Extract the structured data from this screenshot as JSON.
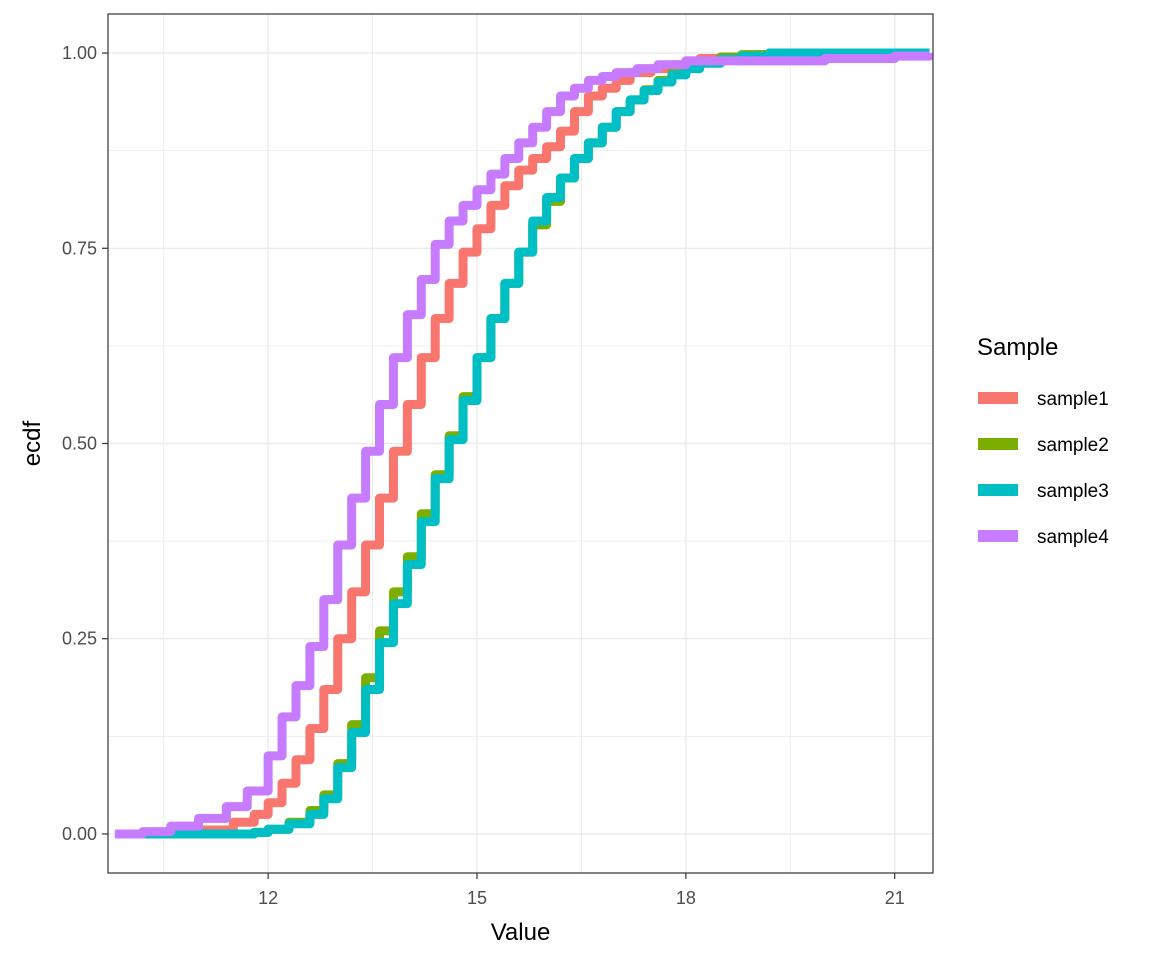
{
  "chart_data": {
    "type": "line",
    "title": "",
    "xlabel": "Value",
    "ylabel": "ecdf",
    "xlim": [
      9.7,
      21.55
    ],
    "ylim": [
      -0.05,
      1.05
    ],
    "x_ticks": [
      12,
      15,
      18,
      21
    ],
    "x_tick_labels": [
      "12",
      "15",
      "18",
      "21"
    ],
    "y_ticks": [
      0,
      0.25,
      0.5,
      0.75,
      1
    ],
    "y_tick_labels": [
      "0.00",
      "0.25",
      "0.50",
      "0.75",
      "1.00"
    ],
    "grid": true,
    "legend": {
      "title": "Sample",
      "position": "right"
    },
    "series": [
      {
        "name": "sample1",
        "color": "#F8766D",
        "x": [
          9.8,
          10.5,
          11.0,
          11.5,
          11.8,
          12.0,
          12.2,
          12.4,
          12.6,
          12.8,
          13.0,
          13.2,
          13.4,
          13.6,
          13.8,
          14.0,
          14.2,
          14.4,
          14.6,
          14.8,
          15.0,
          15.2,
          15.4,
          15.6,
          15.8,
          16.0,
          16.2,
          16.4,
          16.6,
          16.8,
          17.0,
          17.2,
          17.5,
          17.8,
          18.0,
          18.2,
          18.5,
          19.0,
          20.0,
          21.5
        ],
        "y": [
          0.0,
          0.0,
          0.005,
          0.015,
          0.025,
          0.04,
          0.065,
          0.095,
          0.135,
          0.185,
          0.25,
          0.31,
          0.37,
          0.43,
          0.49,
          0.55,
          0.61,
          0.66,
          0.705,
          0.745,
          0.775,
          0.805,
          0.83,
          0.85,
          0.865,
          0.88,
          0.9,
          0.925,
          0.945,
          0.955,
          0.965,
          0.975,
          0.98,
          0.985,
          0.99,
          0.993,
          0.995,
          0.998,
          1.0,
          1.0
        ]
      },
      {
        "name": "sample2",
        "color": "#7CAE00",
        "x": [
          9.8,
          11.0,
          11.8,
          12.0,
          12.3,
          12.6,
          12.8,
          13.0,
          13.2,
          13.4,
          13.6,
          13.8,
          14.0,
          14.2,
          14.4,
          14.6,
          14.8,
          15.0,
          15.2,
          15.4,
          15.6,
          15.8,
          16.0,
          16.2,
          16.4,
          16.6,
          16.8,
          17.0,
          17.2,
          17.4,
          17.6,
          17.8,
          18.0,
          18.2,
          18.5,
          18.8,
          19.2,
          20.0,
          21.5
        ],
        "y": [
          0.0,
          0.0,
          0.002,
          0.006,
          0.015,
          0.03,
          0.05,
          0.09,
          0.14,
          0.2,
          0.26,
          0.31,
          0.355,
          0.41,
          0.46,
          0.51,
          0.56,
          0.61,
          0.66,
          0.705,
          0.745,
          0.78,
          0.81,
          0.84,
          0.865,
          0.885,
          0.905,
          0.925,
          0.94,
          0.953,
          0.965,
          0.975,
          0.983,
          0.99,
          0.995,
          0.998,
          1.0,
          1.0,
          1.0
        ]
      },
      {
        "name": "sample3",
        "color": "#00BFC4",
        "x": [
          9.8,
          11.0,
          11.8,
          12.0,
          12.3,
          12.6,
          12.8,
          13.0,
          13.2,
          13.4,
          13.6,
          13.8,
          14.0,
          14.2,
          14.4,
          14.6,
          14.8,
          15.0,
          15.2,
          15.4,
          15.6,
          15.8,
          16.0,
          16.2,
          16.4,
          16.6,
          16.8,
          17.0,
          17.2,
          17.4,
          17.6,
          17.8,
          18.0,
          18.2,
          18.5,
          18.8,
          19.2,
          20.0,
          21.5
        ],
        "y": [
          0.0,
          0.0,
          0.002,
          0.006,
          0.013,
          0.025,
          0.045,
          0.085,
          0.13,
          0.185,
          0.245,
          0.295,
          0.345,
          0.4,
          0.455,
          0.505,
          0.555,
          0.61,
          0.66,
          0.705,
          0.745,
          0.785,
          0.815,
          0.84,
          0.865,
          0.885,
          0.905,
          0.925,
          0.94,
          0.952,
          0.963,
          0.972,
          0.98,
          0.987,
          0.992,
          0.996,
          1.0,
          1.0,
          1.0
        ]
      },
      {
        "name": "sample4",
        "color": "#C77CFF",
        "x": [
          9.8,
          10.2,
          10.6,
          11.0,
          11.4,
          11.7,
          12.0,
          12.2,
          12.4,
          12.6,
          12.8,
          13.0,
          13.2,
          13.4,
          13.6,
          13.8,
          14.0,
          14.2,
          14.4,
          14.6,
          14.8,
          15.0,
          15.2,
          15.4,
          15.6,
          15.8,
          16.0,
          16.2,
          16.4,
          16.6,
          16.8,
          17.0,
          17.3,
          17.6,
          18.0,
          18.5,
          19.0,
          20.0,
          21.0,
          21.5
        ],
        "y": [
          0.0,
          0.003,
          0.01,
          0.02,
          0.035,
          0.055,
          0.1,
          0.15,
          0.19,
          0.24,
          0.3,
          0.37,
          0.43,
          0.49,
          0.55,
          0.61,
          0.665,
          0.71,
          0.755,
          0.785,
          0.805,
          0.825,
          0.845,
          0.865,
          0.885,
          0.905,
          0.925,
          0.945,
          0.955,
          0.965,
          0.97,
          0.975,
          0.98,
          0.985,
          0.99,
          0.99,
          0.99,
          0.993,
          0.996,
          1.0
        ]
      }
    ]
  }
}
